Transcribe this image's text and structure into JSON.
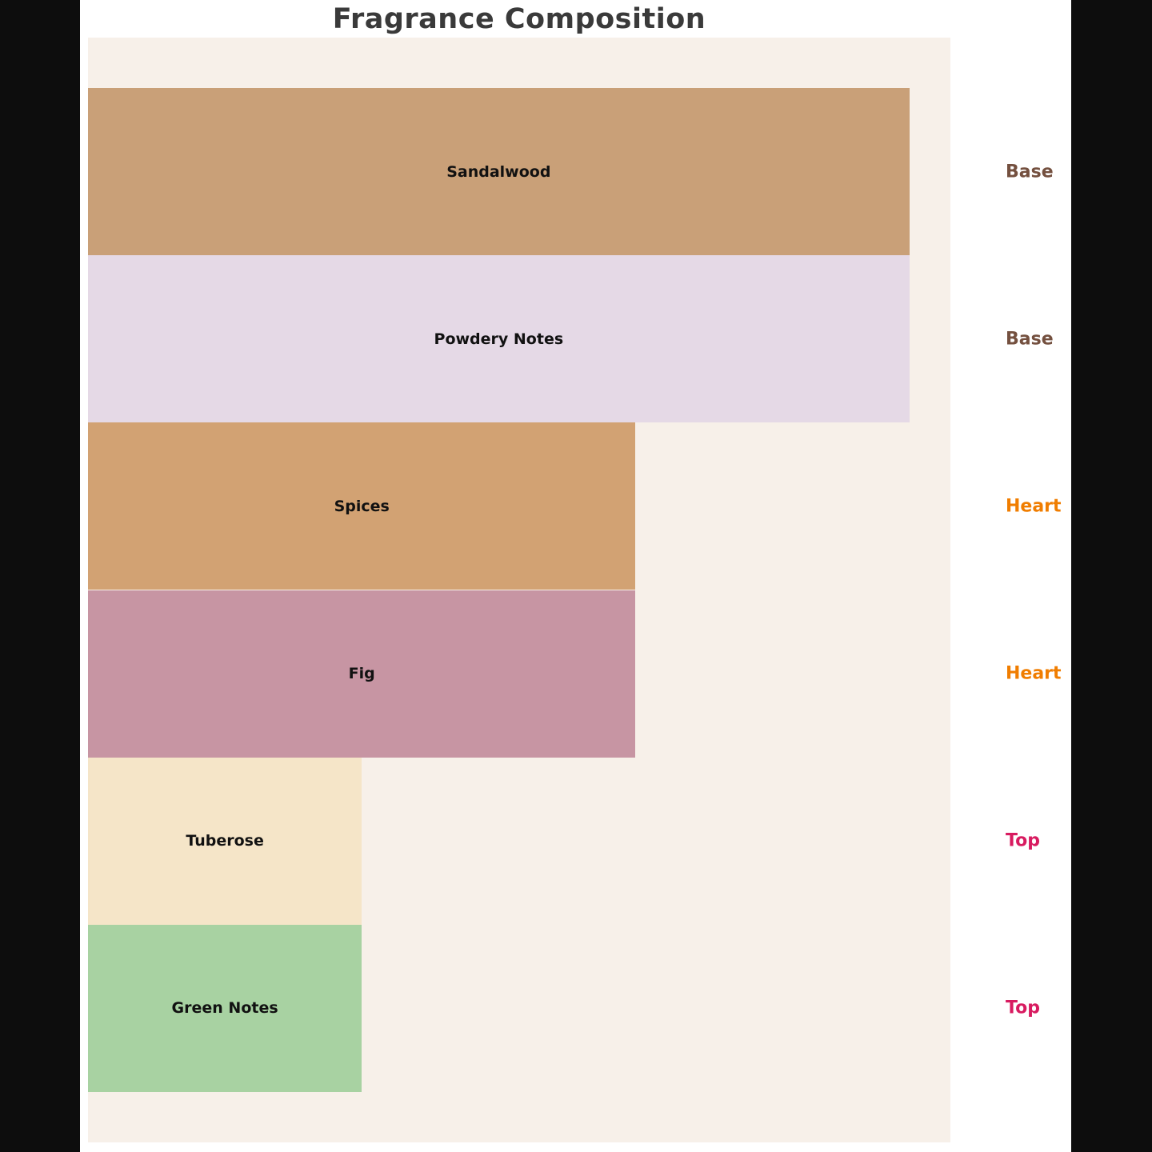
{
  "title": "Fragrance Composition",
  "colors": {
    "page_background": "#0d0d0d",
    "panel_background": "#ffffff",
    "plot_background": "#f7f0e9",
    "title_color": "#3a3a3a",
    "bar_label_color": "#111111"
  },
  "category_colors": {
    "Base": "#74503f",
    "Heart": "#f07d00",
    "Top": "#d81b60"
  },
  "chart_data": {
    "type": "bar",
    "orientation": "horizontal",
    "title": "Fragrance Composition",
    "categories": [
      "Sandalwood",
      "Powdery Notes",
      "Spices",
      "Fig",
      "Tuberose",
      "Green Notes"
    ],
    "values": [
      3,
      3,
      2,
      2,
      1,
      1
    ],
    "bar_colors": [
      "#c9a078",
      "#e5d9e6",
      "#d2a273",
      "#c795a3",
      "#f5e5c8",
      "#a8d2a2"
    ],
    "group_labels": [
      "Base",
      "Base",
      "Heart",
      "Heart",
      "Top",
      "Top"
    ],
    "xlabel": "",
    "ylabel": "",
    "xlim": [
      0,
      3.15
    ],
    "grid": false,
    "axes_visible": false,
    "bar_label_position": "center",
    "group_label_position": "right-margin"
  }
}
